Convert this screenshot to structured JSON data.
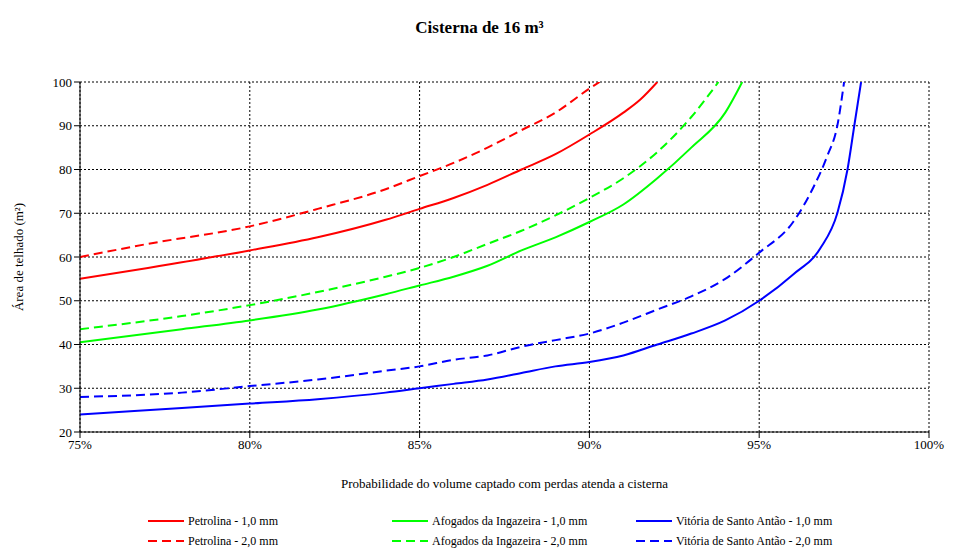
{
  "chart_data": {
    "type": "line",
    "title": "Cisterna de 16 m³",
    "x_label": "Probabilidade do volume captado com perdas atenda a cisterna",
    "y_label": "Área de telhado (m²)",
    "xlim": [
      75,
      100
    ],
    "ylim": [
      20,
      100
    ],
    "xticks": [
      {
        "value": 75,
        "label": "75%"
      },
      {
        "value": 80,
        "label": "80%"
      },
      {
        "value": 85,
        "label": "85%"
      },
      {
        "value": 90,
        "label": "90%"
      },
      {
        "value": 95,
        "label": "95%"
      },
      {
        "value": 100,
        "label": "100%"
      }
    ],
    "yticks": [
      20,
      30,
      40,
      50,
      60,
      70,
      80,
      90,
      100
    ],
    "grid": true,
    "legend": "bottom",
    "series": [
      {
        "name": "Petrolina - 1,0 mm",
        "color": "#ff0000",
        "line_style": "solid",
        "x": [
          75,
          77,
          80,
          82,
          84,
          85,
          86,
          87,
          88,
          89,
          90,
          91,
          91.5,
          92
        ],
        "values": [
          55,
          57.5,
          61.5,
          64.5,
          68.5,
          71,
          73.5,
          76.5,
          80,
          83.5,
          88,
          93,
          96,
          100
        ]
      },
      {
        "name": "Petrolina - 2,0 mm",
        "color": "#ff0000",
        "line_style": "dashed",
        "x": [
          75,
          77,
          80,
          82,
          84,
          85,
          86,
          87,
          88,
          89,
          90,
          90.3
        ],
        "values": [
          60,
          63,
          67,
          71,
          75.5,
          78.5,
          81.5,
          85,
          89,
          93,
          98.5,
          100
        ]
      },
      {
        "name": "Afogados da Ingazeira - 1,0 mm",
        "color": "#00ff00",
        "line_style": "solid",
        "x": [
          75,
          78,
          80,
          82,
          84,
          85,
          86,
          87,
          88,
          89,
          90,
          91,
          92,
          93,
          94,
          94.5
        ],
        "values": [
          40.5,
          43.5,
          45.5,
          48,
          51.5,
          53.5,
          55.5,
          58,
          61.5,
          64.5,
          68,
          72,
          78,
          85,
          93,
          100
        ]
      },
      {
        "name": "Afogados da Ingazeira - 2,0 mm",
        "color": "#00ff00",
        "line_style": "dashed",
        "x": [
          75,
          78,
          80,
          82,
          84,
          85,
          86,
          87,
          88,
          89,
          90,
          91,
          92,
          93,
          93.8
        ],
        "values": [
          43.5,
          46.5,
          49,
          52,
          55.5,
          57.5,
          60,
          63,
          66,
          69.5,
          73.5,
          78,
          84,
          92,
          100
        ]
      },
      {
        "name": "Vitória de Santo Antão - 1,0 mm",
        "color": "#0000ff",
        "line_style": "solid",
        "x": [
          75,
          78,
          80,
          82,
          84,
          85,
          86,
          87,
          88,
          89,
          90,
          91,
          92,
          93,
          94,
          95,
          96,
          96.8,
          97.3,
          97.6,
          97.8,
          98
        ],
        "values": [
          24,
          25.5,
          26.5,
          27.5,
          29,
          30,
          31,
          32,
          33.5,
          35,
          36,
          37.5,
          40,
          42.5,
          45.5,
          50,
          56,
          62,
          70,
          80,
          90,
          100
        ]
      },
      {
        "name": "Vitória de Santo Antão - 2,0 mm",
        "color": "#0000ff",
        "line_style": "dashed",
        "x": [
          75,
          78,
          80,
          82,
          84,
          85,
          86,
          87,
          88,
          89,
          90,
          91,
          92,
          93,
          94,
          95,
          96,
          96.6,
          97,
          97.3,
          97.5
        ],
        "values": [
          28,
          29,
          30.5,
          32,
          34,
          35,
          36.5,
          37.5,
          39.5,
          41,
          42.5,
          45,
          48,
          51,
          55,
          61,
          68,
          76,
          83,
          90,
          100
        ]
      }
    ]
  }
}
